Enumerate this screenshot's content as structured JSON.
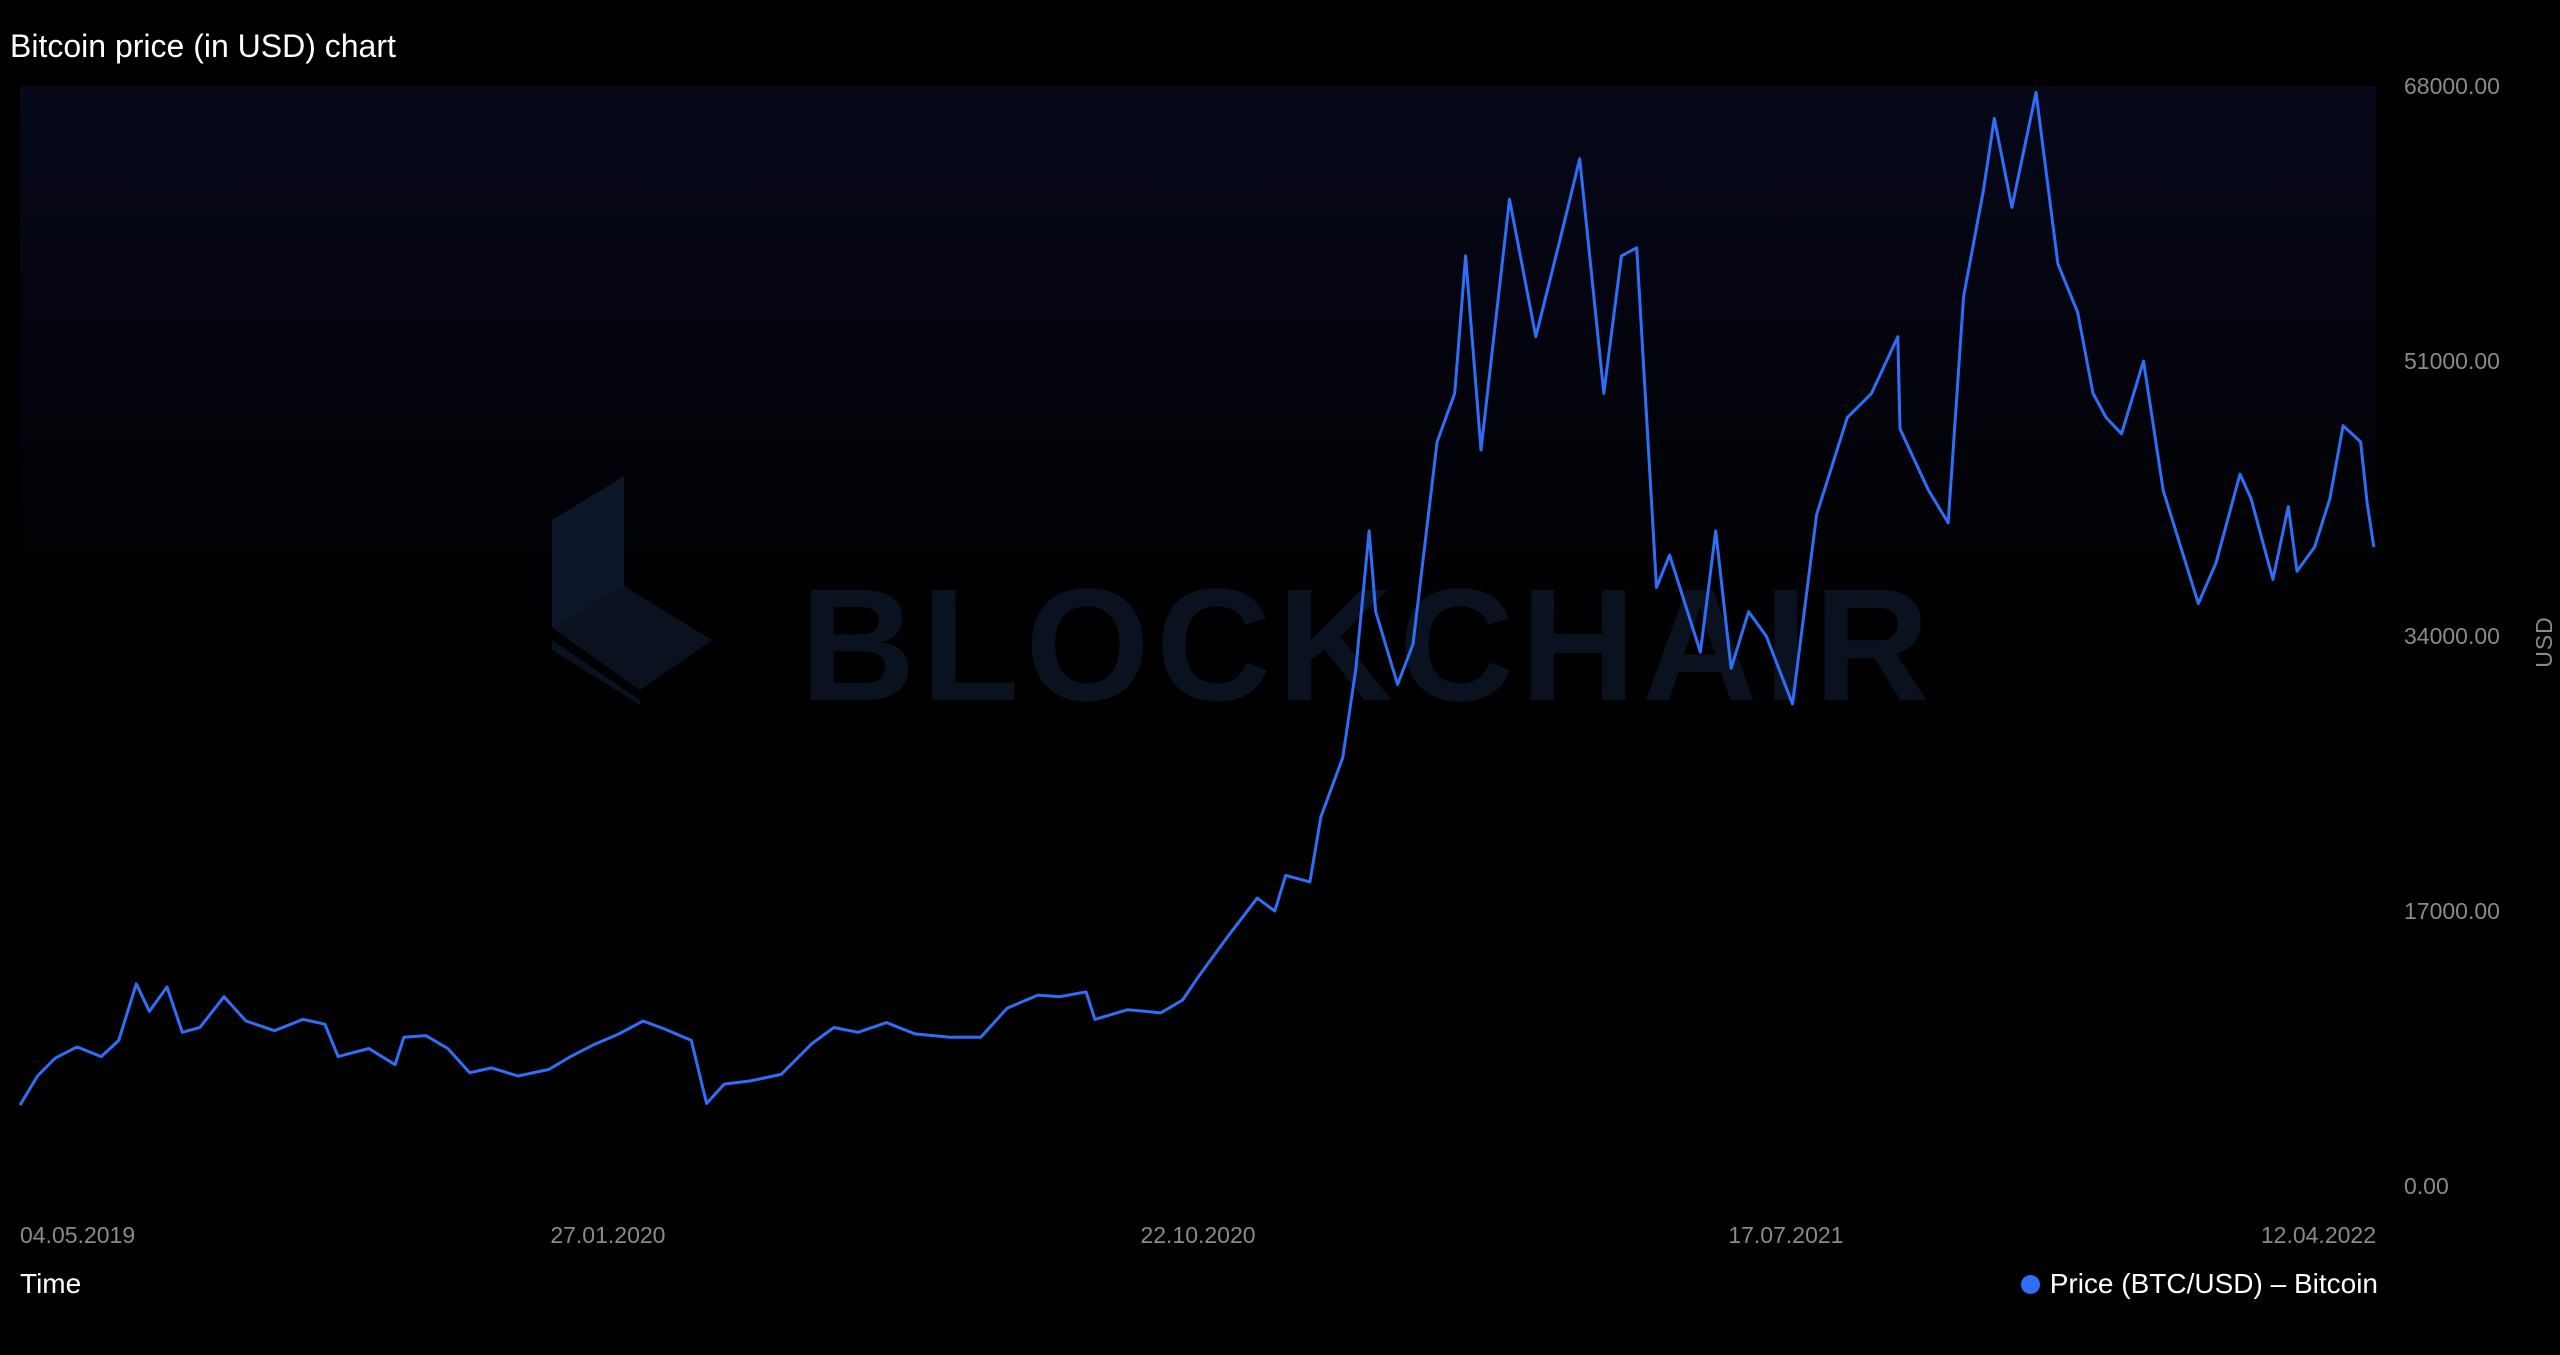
{
  "title": "Bitcoin price (in USD) chart",
  "watermark": "BLOCKCHAIR",
  "colors": {
    "background": "#000000",
    "plot_gradient_top": "#07081a",
    "line": "#2f6ef6",
    "tick_text": "#8a8a8a",
    "watermark": "#0a1220"
  },
  "chart_data": {
    "type": "line",
    "xlabel": "Time",
    "ylabel": "USD",
    "ylim": [
      0,
      68000
    ],
    "yticks": [
      0,
      17000,
      34000,
      51000,
      68000
    ],
    "ytick_labels": [
      "0.00",
      "17000.00",
      "34000.00",
      "51000.00",
      "68000.00"
    ],
    "xlim": [
      "2019-05-04",
      "2022-04-12"
    ],
    "xticks": [
      "2019-05-04",
      "2020-01-27",
      "2020-10-22",
      "2021-07-17",
      "2022-04-12"
    ],
    "xtick_labels": [
      "04.05.2019",
      "27.01.2020",
      "22.10.2020",
      "17.07.2021",
      "12.04.2022"
    ],
    "legend_position": "bottom-right",
    "grid": false,
    "series": [
      {
        "name": "Price (BTC/USD) – Bitcoin",
        "color": "#2f6ef6",
        "points": [
          [
            "2019-05-04",
            5000
          ],
          [
            "2019-05-12",
            6800
          ],
          [
            "2019-05-20",
            7900
          ],
          [
            "2019-05-30",
            8600
          ],
          [
            "2019-06-10",
            8000
          ],
          [
            "2019-06-18",
            9000
          ],
          [
            "2019-06-26",
            12500
          ],
          [
            "2019-07-02",
            10800
          ],
          [
            "2019-07-10",
            12300
          ],
          [
            "2019-07-17",
            9500
          ],
          [
            "2019-07-25",
            9800
          ],
          [
            "2019-08-05",
            11700
          ],
          [
            "2019-08-15",
            10200
          ],
          [
            "2019-08-28",
            9600
          ],
          [
            "2019-09-10",
            10300
          ],
          [
            "2019-09-20",
            10000
          ],
          [
            "2019-09-26",
            8000
          ],
          [
            "2019-10-10",
            8500
          ],
          [
            "2019-10-22",
            7500
          ],
          [
            "2019-10-26",
            9200
          ],
          [
            "2019-11-05",
            9300
          ],
          [
            "2019-11-15",
            8500
          ],
          [
            "2019-11-25",
            7000
          ],
          [
            "2019-12-05",
            7300
          ],
          [
            "2019-12-17",
            6800
          ],
          [
            "2019-12-31",
            7200
          ],
          [
            "2020-01-10",
            8000
          ],
          [
            "2020-01-20",
            8700
          ],
          [
            "2020-02-01",
            9400
          ],
          [
            "2020-02-12",
            10200
          ],
          [
            "2020-02-22",
            9700
          ],
          [
            "2020-03-05",
            9000
          ],
          [
            "2020-03-12",
            5100
          ],
          [
            "2020-03-20",
            6300
          ],
          [
            "2020-04-01",
            6500
          ],
          [
            "2020-04-15",
            6900
          ],
          [
            "2020-04-29",
            8800
          ],
          [
            "2020-05-09",
            9800
          ],
          [
            "2020-05-20",
            9500
          ],
          [
            "2020-06-02",
            10100
          ],
          [
            "2020-06-15",
            9400
          ],
          [
            "2020-07-01",
            9200
          ],
          [
            "2020-07-15",
            9200
          ],
          [
            "2020-07-27",
            11000
          ],
          [
            "2020-08-10",
            11800
          ],
          [
            "2020-08-20",
            11700
          ],
          [
            "2020-09-01",
            12000
          ],
          [
            "2020-09-05",
            10300
          ],
          [
            "2020-09-20",
            10900
          ],
          [
            "2020-10-05",
            10700
          ],
          [
            "2020-10-15",
            11500
          ],
          [
            "2020-10-22",
            12900
          ],
          [
            "2020-11-05",
            15500
          ],
          [
            "2020-11-18",
            17800
          ],
          [
            "2020-11-26",
            17000
          ],
          [
            "2020-12-01",
            19200
          ],
          [
            "2020-12-12",
            18800
          ],
          [
            "2020-12-17",
            22800
          ],
          [
            "2020-12-27",
            26500
          ],
          [
            "2021-01-02",
            32000
          ],
          [
            "2021-01-08",
            40500
          ],
          [
            "2021-01-11",
            35500
          ],
          [
            "2021-01-21",
            31000
          ],
          [
            "2021-01-28",
            33500
          ],
          [
            "2021-02-08",
            46000
          ],
          [
            "2021-02-16",
            49000
          ],
          [
            "2021-02-21",
            57500
          ],
          [
            "2021-02-28",
            45500
          ],
          [
            "2021-03-13",
            61000
          ],
          [
            "2021-03-25",
            52500
          ],
          [
            "2021-04-05",
            58500
          ],
          [
            "2021-04-14",
            63500
          ],
          [
            "2021-04-25",
            49000
          ],
          [
            "2021-05-03",
            57500
          ],
          [
            "2021-05-10",
            58000
          ],
          [
            "2021-05-19",
            37000
          ],
          [
            "2021-05-25",
            39000
          ],
          [
            "2021-06-08",
            33000
          ],
          [
            "2021-06-15",
            40500
          ],
          [
            "2021-06-22",
            32000
          ],
          [
            "2021-06-30",
            35500
          ],
          [
            "2021-07-08",
            34000
          ],
          [
            "2021-07-20",
            29800
          ],
          [
            "2021-07-31",
            41500
          ],
          [
            "2021-08-14",
            47500
          ],
          [
            "2021-08-25",
            49000
          ],
          [
            "2021-09-06",
            52500
          ],
          [
            "2021-09-07",
            46800
          ],
          [
            "2021-09-20",
            43000
          ],
          [
            "2021-09-29",
            41000
          ],
          [
            "2021-10-06",
            55000
          ],
          [
            "2021-10-15",
            61500
          ],
          [
            "2021-10-20",
            66000
          ],
          [
            "2021-10-28",
            60500
          ],
          [
            "2021-11-08",
            67600
          ],
          [
            "2021-11-18",
            57000
          ],
          [
            "2021-11-27",
            54000
          ],
          [
            "2021-12-04",
            49000
          ],
          [
            "2021-12-10",
            47500
          ],
          [
            "2021-12-17",
            46500
          ],
          [
            "2021-12-27",
            51000
          ],
          [
            "2022-01-05",
            43000
          ],
          [
            "2022-01-21",
            36000
          ],
          [
            "2022-01-29",
            38500
          ],
          [
            "2022-02-09",
            44000
          ],
          [
            "2022-02-14",
            42500
          ],
          [
            "2022-02-24",
            37500
          ],
          [
            "2022-03-03",
            42000
          ],
          [
            "2022-03-07",
            38000
          ],
          [
            "2022-03-15",
            39500
          ],
          [
            "2022-03-22",
            42500
          ],
          [
            "2022-03-28",
            47000
          ],
          [
            "2022-04-05",
            46000
          ],
          [
            "2022-04-08",
            42200
          ],
          [
            "2022-04-11",
            39500
          ]
        ]
      }
    ]
  }
}
